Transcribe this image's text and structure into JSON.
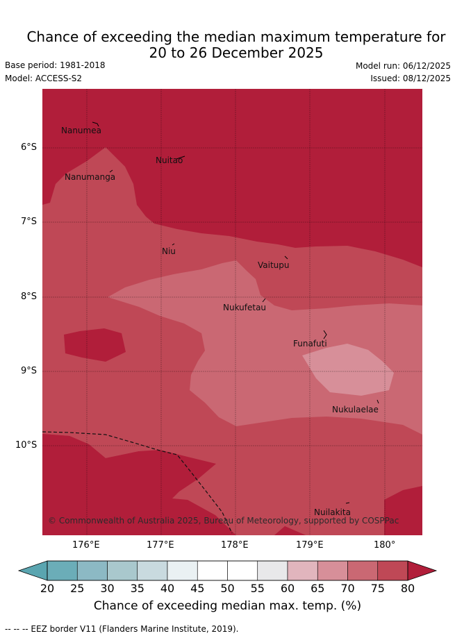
{
  "title": {
    "line1": "Chance of exceeding the median maximum temperature for",
    "line2": "20 to 26 December 2025"
  },
  "meta": {
    "base_period": "Base period: 1981-2018",
    "model": "Model: ACCESS-S2",
    "model_run": "Model run: 06/12/2025",
    "issued": "Issued: 08/12/2025"
  },
  "axes": {
    "lat_ticks": [
      "6°S",
      "7°S",
      "8°S",
      "9°S",
      "10°S"
    ],
    "lon_ticks": [
      "176°E",
      "177°E",
      "178°E",
      "179°E",
      "180°"
    ]
  },
  "places": [
    {
      "name": "Nanumea"
    },
    {
      "name": "Nuitao"
    },
    {
      "name": "Nanumanga"
    },
    {
      "name": "Niu"
    },
    {
      "name": "Vaitupu"
    },
    {
      "name": "Nukufetau"
    },
    {
      "name": "Funafuti"
    },
    {
      "name": "Nukulaelae"
    },
    {
      "name": "Nuilakita"
    }
  ],
  "copyright": "© Commonwealth of Australia 2025, Bureau of Meteorology, supported by COSPPac",
  "colorbar": {
    "ticks": [
      "20",
      "25",
      "30",
      "35",
      "40",
      "45",
      "50",
      "55",
      "60",
      "65",
      "70",
      "75",
      "80"
    ],
    "colors": [
      "#6badb8",
      "#8cb9c4",
      "#a9c8cd",
      "#c9dadf",
      "#eaf1f3",
      "#ffffff",
      "#ffffff",
      "#e8e8ea",
      "#e1b5bd",
      "#d78f99",
      "#ca6873",
      "#bf4856"
    ],
    "under_color": "#5aa5b0",
    "over_color": "#b11e3a",
    "label": "Chance of exceeding median max. temp. (%)"
  },
  "footnote": "--  --  -- EEZ border V11 (Flanders Marine Institute, 2019)."
}
